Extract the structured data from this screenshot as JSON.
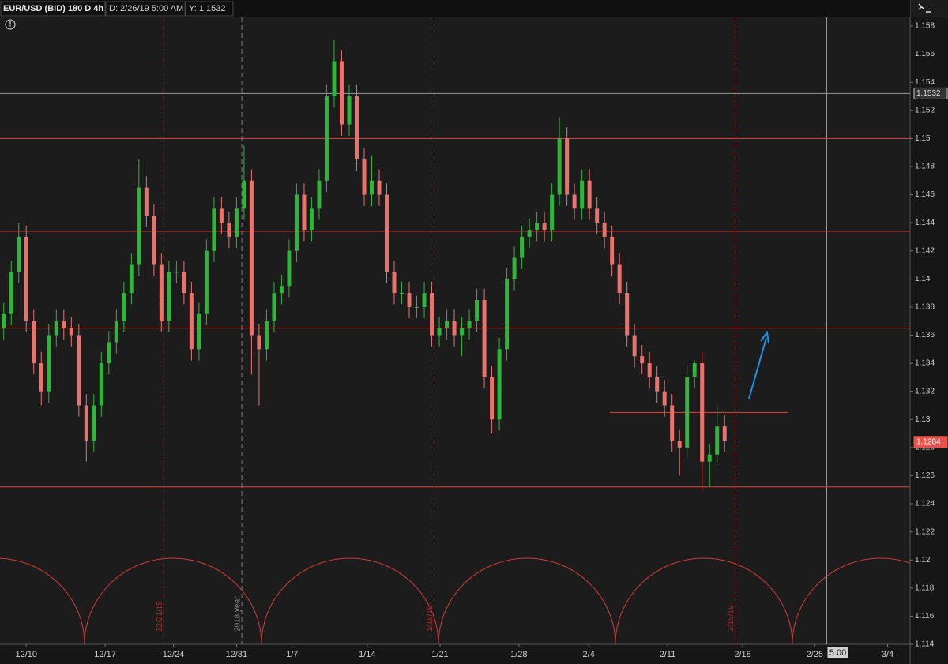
{
  "chart_data": {
    "type": "candlestick",
    "header": {
      "symbol": "EUR/USD (BID) 180 D 4h",
      "date": "D: 2/26/19 5:00 AM",
      "y": "Y: 1.1532"
    },
    "up_color": "#2fb53a",
    "down_color": "#e8726c",
    "open": [
      1.1365,
      1.1375,
      1.1405,
      1.143,
      1.137,
      1.134,
      1.132,
      1.136,
      1.137,
      1.1365,
      1.136,
      1.131,
      1.1285,
      1.131,
      1.134,
      1.1355,
      1.137,
      1.139,
      1.141,
      1.1465,
      1.1445,
      1.141,
      1.137,
      1.1405,
      1.1405,
      1.139,
      1.135,
      1.1375,
      1.142,
      1.145,
      1.144,
      1.143,
      1.145,
      1.147,
      1.136,
      1.135,
      1.137,
      1.139,
      1.1395,
      1.142,
      1.146,
      1.1435,
      1.145,
      1.147,
      1.153,
      1.1555,
      1.151,
      1.153,
      1.1485,
      1.146,
      1.147,
      1.146,
      1.1405,
      1.139,
      1.139,
      1.138,
      1.138,
      1.139,
      1.136,
      1.1365,
      1.137,
      1.136,
      1.1365,
      1.137,
      1.1385,
      1.133,
      1.13,
      1.135,
      1.14,
      1.1415,
      1.143,
      1.1435,
      1.144,
      1.1435,
      1.146,
      1.15,
      1.146,
      1.145,
      1.147,
      1.145,
      1.144,
      1.143,
      1.141,
      1.139,
      1.136,
      1.1345,
      1.134,
      1.133,
      1.132,
      1.131,
      1.1285,
      1.128,
      1.133,
      1.134,
      1.127,
      1.1275,
      1.1295
    ],
    "high": [
      1.1383,
      1.1413,
      1.144,
      1.1438,
      1.1378,
      1.1348,
      1.1368,
      1.1378,
      1.1378,
      1.1373,
      1.1368,
      1.1318,
      1.1318,
      1.1348,
      1.1363,
      1.1378,
      1.1398,
      1.1418,
      1.1485,
      1.1473,
      1.1453,
      1.1418,
      1.1413,
      1.1413,
      1.1413,
      1.1398,
      1.1383,
      1.1428,
      1.1458,
      1.1458,
      1.1448,
      1.1458,
      1.1495,
      1.1478,
      1.1368,
      1.1378,
      1.1398,
      1.1403,
      1.1428,
      1.1468,
      1.1468,
      1.1458,
      1.1478,
      1.1538,
      1.157,
      1.1563,
      1.1538,
      1.1538,
      1.1493,
      1.1488,
      1.1478,
      1.1468,
      1.1413,
      1.1398,
      1.1398,
      1.1388,
      1.1398,
      1.1398,
      1.1373,
      1.1378,
      1.1378,
      1.1373,
      1.1378,
      1.1393,
      1.1393,
      1.1338,
      1.1358,
      1.1408,
      1.1423,
      1.1438,
      1.1443,
      1.1448,
      1.1448,
      1.1468,
      1.1515,
      1.1508,
      1.1468,
      1.1478,
      1.1478,
      1.1458,
      1.1448,
      1.1438,
      1.1418,
      1.1398,
      1.1368,
      1.1353,
      1.1348,
      1.1338,
      1.1328,
      1.1318,
      1.1293,
      1.1338,
      1.1342,
      1.1348,
      1.1283,
      1.131,
      1.1303
    ],
    "low": [
      1.1357,
      1.1367,
      1.1397,
      1.1362,
      1.1332,
      1.131,
      1.1312,
      1.1352,
      1.1357,
      1.1352,
      1.1302,
      1.127,
      1.1277,
      1.1302,
      1.1332,
      1.1347,
      1.1362,
      1.1382,
      1.1402,
      1.1437,
      1.1402,
      1.1362,
      1.1362,
      1.1397,
      1.1382,
      1.1342,
      1.1342,
      1.1367,
      1.1412,
      1.1432,
      1.1422,
      1.1422,
      1.1442,
      1.1332,
      1.131,
      1.1342,
      1.1362,
      1.1382,
      1.1387,
      1.1412,
      1.1427,
      1.1427,
      1.1442,
      1.1462,
      1.1522,
      1.1502,
      1.1502,
      1.1477,
      1.1452,
      1.1452,
      1.1452,
      1.1397,
      1.1382,
      1.1382,
      1.1372,
      1.1372,
      1.1372,
      1.1352,
      1.1352,
      1.1357,
      1.1352,
      1.1345,
      1.1357,
      1.1362,
      1.1322,
      1.129,
      1.1292,
      1.1342,
      1.1392,
      1.1407,
      1.1422,
      1.1427,
      1.1427,
      1.1427,
      1.1452,
      1.1452,
      1.1442,
      1.1442,
      1.1442,
      1.1432,
      1.1422,
      1.1402,
      1.1382,
      1.1352,
      1.1337,
      1.1332,
      1.1322,
      1.1312,
      1.1302,
      1.1277,
      1.126,
      1.1272,
      1.1322,
      1.125,
      1.1252,
      1.1267,
      1.1277
    ],
    "close": [
      1.1375,
      1.1405,
      1.143,
      1.137,
      1.134,
      1.132,
      1.136,
      1.137,
      1.1365,
      1.136,
      1.131,
      1.1285,
      1.131,
      1.134,
      1.1355,
      1.137,
      1.139,
      1.141,
      1.1465,
      1.1445,
      1.141,
      1.137,
      1.1405,
      1.1405,
      1.139,
      1.135,
      1.1375,
      1.142,
      1.145,
      1.144,
      1.143,
      1.145,
      1.147,
      1.136,
      1.135,
      1.137,
      1.139,
      1.1395,
      1.142,
      1.146,
      1.1435,
      1.145,
      1.147,
      1.153,
      1.1555,
      1.151,
      1.153,
      1.1485,
      1.146,
      1.147,
      1.146,
      1.1405,
      1.139,
      1.139,
      1.138,
      1.138,
      1.139,
      1.136,
      1.1365,
      1.137,
      1.136,
      1.1365,
      1.137,
      1.1385,
      1.133,
      1.13,
      1.135,
      1.14,
      1.1415,
      1.143,
      1.1435,
      1.144,
      1.1435,
      1.146,
      1.15,
      1.146,
      1.145,
      1.147,
      1.145,
      1.144,
      1.143,
      1.141,
      1.139,
      1.136,
      1.1345,
      1.134,
      1.133,
      1.132,
      1.131,
      1.1285,
      1.128,
      1.133,
      1.134,
      1.127,
      1.1275,
      1.1295,
      1.1285
    ],
    "xlim": [
      -0.5,
      120.7
    ],
    "xticks": [
      {
        "value": 3,
        "label": "12/10"
      },
      {
        "value": 13.5,
        "label": "12/17"
      },
      {
        "value": 22.6,
        "label": "12/24"
      },
      {
        "value": 31,
        "label": "12/31"
      },
      {
        "value": 38.4,
        "label": "1/7"
      },
      {
        "value": 48.4,
        "label": "1/14"
      },
      {
        "value": 58.1,
        "label": "1/21"
      },
      {
        "value": 68.6,
        "label": "1/28"
      },
      {
        "value": 77.9,
        "label": "2/4"
      },
      {
        "value": 88.4,
        "label": "2/11"
      },
      {
        "value": 98.4,
        "label": "2/18"
      },
      {
        "value": 108,
        "label": "2/25"
      },
      {
        "value": 117.7,
        "label": "3/4"
      }
    ],
    "ylim": [
      1.114,
      1.158
    ],
    "yticks": [
      1.158,
      1.156,
      1.154,
      1.152,
      1.15,
      1.148,
      1.146,
      1.144,
      1.142,
      1.14,
      1.138,
      1.136,
      1.134,
      1.132,
      1.13,
      1.128,
      1.126,
      1.124,
      1.122,
      1.12,
      1.118,
      1.116,
      1.114
    ],
    "levels": [
      1.15,
      1.1434,
      1.1365,
      1.1252
    ],
    "level_color": "#e0443c",
    "segment": {
      "value": 1.1305,
      "x": [
        80.7,
        104.4
      ]
    },
    "vlines": [
      {
        "value": 21.3,
        "label": "12/21/18"
      },
      {
        "value": 31.7,
        "label": "2018 year"
      },
      {
        "value": 57.3,
        "label": "1/18/19"
      },
      {
        "value": 97.4,
        "label": "2/15/19"
      }
    ],
    "price_markers": [
      {
        "value": 1.1532,
        "color": "#c8c8c8"
      },
      {
        "value": 1.1284,
        "color": "#e8524a"
      }
    ],
    "cursor": {
      "x": 109.6,
      "price": 1.1532,
      "label": "5:00"
    }
  }
}
